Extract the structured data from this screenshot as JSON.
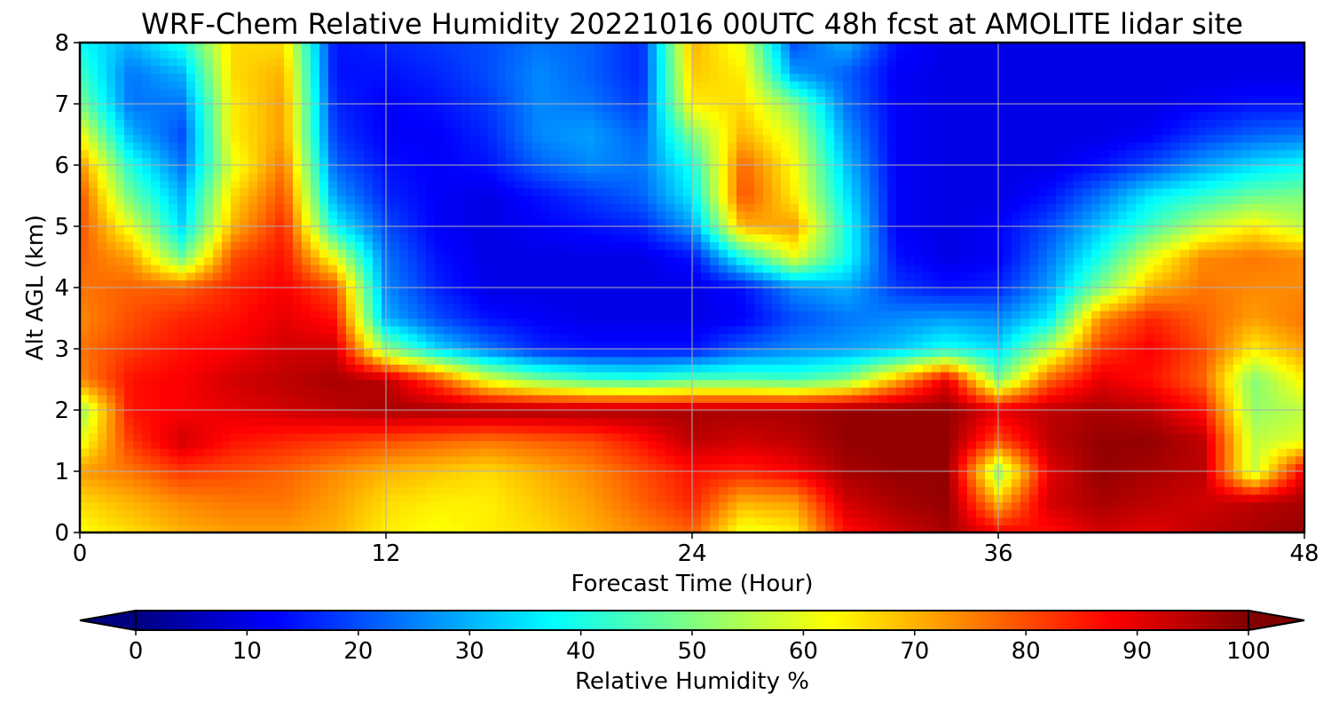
{
  "chart_data": {
    "type": "heatmap",
    "title": "WRF-Chem Relative Humidity 20221016 00UTC 48h fcst at AMOLITE lidar site",
    "xlabel": "Forecast Time (Hour)",
    "ylabel": "Alt AGL (km)",
    "xlim": [
      0,
      48
    ],
    "ylim": [
      0,
      8
    ],
    "x_ticks": [
      "0",
      "12",
      "24",
      "36",
      "48"
    ],
    "y_ticks": [
      "0",
      "1",
      "2",
      "3",
      "4",
      "5",
      "6",
      "7",
      "8"
    ],
    "grid": true,
    "colormap": "jet",
    "colorbar": {
      "label": "Relative Humidity %",
      "range": [
        0,
        100
      ],
      "extend": "both",
      "ticks": [
        "0",
        "10",
        "20",
        "30",
        "40",
        "50",
        "60",
        "70",
        "80",
        "90",
        "100"
      ]
    },
    "x": [
      0,
      2,
      4,
      6,
      8,
      10,
      12,
      14,
      16,
      18,
      20,
      22,
      24,
      26,
      28,
      30,
      32,
      34,
      36,
      38,
      40,
      42,
      44,
      46,
      48
    ],
    "y": [
      0,
      0.5,
      1,
      1.5,
      2,
      2.5,
      3,
      3.5,
      4,
      4.5,
      5,
      5.5,
      6,
      6.5,
      7,
      7.5,
      8
    ],
    "z": [
      [
        62,
        66,
        70,
        72,
        72,
        70,
        64,
        62,
        64,
        66,
        70,
        74,
        78,
        60,
        64,
        86,
        92,
        96,
        88,
        86,
        92,
        90,
        94,
        96,
        98
      ],
      [
        66,
        70,
        74,
        76,
        76,
        72,
        66,
        64,
        64,
        68,
        72,
        78,
        84,
        70,
        72,
        92,
        96,
        98,
        70,
        92,
        96,
        94,
        92,
        94,
        96
      ],
      [
        72,
        76,
        82,
        80,
        78,
        74,
        70,
        68,
        66,
        70,
        74,
        80,
        86,
        84,
        88,
        96,
        98,
        98,
        52,
        90,
        98,
        96,
        94,
        56,
        90
      ],
      [
        60,
        82,
        92,
        86,
        84,
        82,
        80,
        78,
        76,
        78,
        80,
        86,
        94,
        92,
        94,
        98,
        98,
        98,
        80,
        94,
        98,
        98,
        94,
        56,
        60
      ],
      [
        52,
        86,
        88,
        90,
        92,
        94,
        96,
        96,
        96,
        96,
        96,
        96,
        96,
        96,
        96,
        98,
        98,
        98,
        90,
        94,
        96,
        94,
        86,
        52,
        56
      ],
      [
        74,
        86,
        88,
        92,
        94,
        96,
        94,
        80,
        60,
        50,
        44,
        42,
        46,
        46,
        44,
        50,
        70,
        90,
        50,
        78,
        90,
        86,
        78,
        50,
        64
      ],
      [
        76,
        82,
        86,
        88,
        92,
        92,
        52,
        34,
        24,
        16,
        14,
        14,
        14,
        22,
        26,
        28,
        32,
        40,
        34,
        56,
        82,
        88,
        80,
        64,
        72
      ],
      [
        74,
        80,
        84,
        86,
        90,
        86,
        30,
        20,
        14,
        12,
        10,
        10,
        10,
        12,
        20,
        24,
        26,
        28,
        26,
        36,
        74,
        84,
        78,
        72,
        76
      ],
      [
        76,
        78,
        78,
        84,
        88,
        80,
        26,
        16,
        10,
        10,
        10,
        10,
        10,
        14,
        26,
        30,
        18,
        14,
        16,
        28,
        50,
        70,
        76,
        74,
        74
      ],
      [
        78,
        72,
        48,
        80,
        86,
        60,
        24,
        14,
        10,
        10,
        10,
        10,
        14,
        40,
        60,
        40,
        14,
        10,
        12,
        24,
        40,
        60,
        74,
        76,
        74
      ],
      [
        80,
        60,
        34,
        70,
        84,
        38,
        20,
        12,
        10,
        12,
        14,
        16,
        28,
        70,
        72,
        40,
        12,
        10,
        12,
        20,
        32,
        44,
        56,
        64,
        56
      ],
      [
        80,
        48,
        30,
        66,
        80,
        28,
        16,
        12,
        10,
        14,
        18,
        22,
        36,
        80,
        64,
        36,
        12,
        10,
        10,
        14,
        24,
        36,
        42,
        48,
        50
      ],
      [
        74,
        40,
        24,
        60,
        76,
        22,
        14,
        12,
        14,
        22,
        26,
        24,
        40,
        78,
        62,
        32,
        12,
        10,
        10,
        10,
        14,
        20,
        28,
        34,
        38
      ],
      [
        62,
        30,
        20,
        64,
        72,
        18,
        12,
        12,
        16,
        26,
        28,
        22,
        50,
        70,
        58,
        28,
        12,
        10,
        10,
        10,
        10,
        12,
        18,
        22,
        24
      ],
      [
        50,
        24,
        24,
        64,
        72,
        16,
        12,
        14,
        18,
        26,
        24,
        18,
        64,
        66,
        50,
        24,
        12,
        10,
        10,
        10,
        10,
        10,
        12,
        14,
        14
      ],
      [
        44,
        24,
        30,
        66,
        70,
        14,
        14,
        16,
        20,
        26,
        22,
        16,
        68,
        64,
        28,
        22,
        12,
        10,
        10,
        10,
        10,
        10,
        10,
        10,
        10
      ],
      [
        38,
        30,
        40,
        66,
        66,
        14,
        16,
        18,
        20,
        24,
        22,
        16,
        70,
        60,
        20,
        30,
        14,
        10,
        10,
        10,
        10,
        10,
        10,
        10,
        10
      ]
    ]
  }
}
